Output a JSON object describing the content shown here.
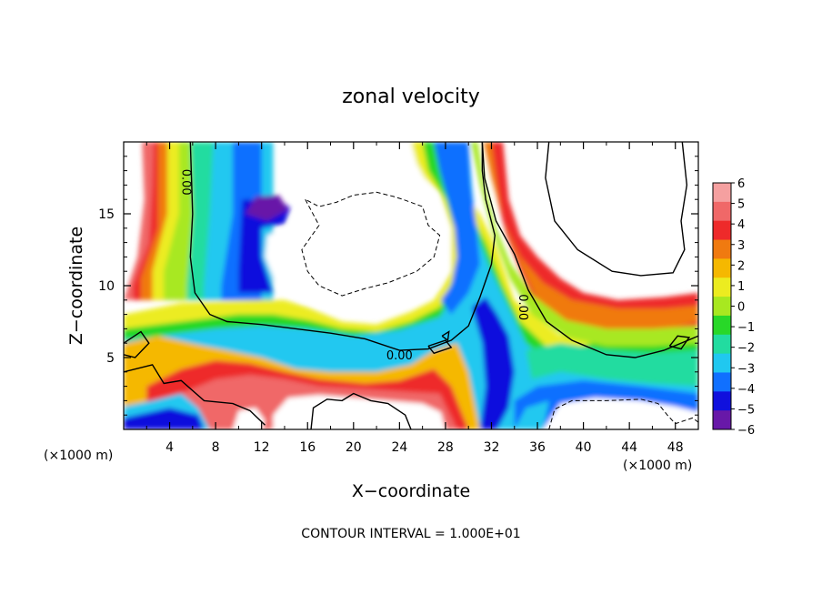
{
  "chart_data": {
    "type": "heatmap",
    "title": "zonal velocity",
    "xlabel": "X−coordinate",
    "ylabel": "Z−coordinate",
    "x_unit_label_left": "(×1000 m)",
    "x_unit_label_right": "(×1000 m)",
    "footer": "CONTOUR INTERVAL = 1.000E+01",
    "xlim": [
      0,
      50
    ],
    "ylim": [
      0,
      20
    ],
    "x_ticks": [
      {
        "v": 4,
        "label": "4"
      },
      {
        "v": 8,
        "label": "8"
      },
      {
        "v": 12,
        "label": "12"
      },
      {
        "v": 16,
        "label": "16"
      },
      {
        "v": 20,
        "label": "20"
      },
      {
        "v": 24,
        "label": "24"
      },
      {
        "v": 28,
        "label": "28"
      },
      {
        "v": 32,
        "label": "32"
      },
      {
        "v": 36,
        "label": "36"
      },
      {
        "v": 40,
        "label": "40"
      },
      {
        "v": 44,
        "label": "44"
      },
      {
        "v": 48,
        "label": "48"
      }
    ],
    "y_ticks": [
      {
        "v": 5,
        "label": "5"
      },
      {
        "v": 10,
        "label": "10"
      },
      {
        "v": 15,
        "label": "15"
      }
    ],
    "colorbar": {
      "range": [
        -6,
        6
      ],
      "labels": [
        "6",
        "5",
        "4",
        "3",
        "2",
        "1",
        "0",
        "−1",
        "−2",
        "−3",
        "−4",
        "−5",
        "−6"
      ],
      "colors": [
        "#f5a0a0",
        "#f06868",
        "#ee2a2a",
        "#f07a10",
        "#f5b800",
        "#ecec20",
        "#a8e820",
        "#28d828",
        "#22dca0",
        "#20c8f0",
        "#1070ff",
        "#1010dd",
        "#6818a8"
      ]
    },
    "contour_labels": [
      {
        "text": "0.00",
        "x": 5.5,
        "y": 17.2,
        "rotate": 90
      },
      {
        "text": "0.00",
        "x": 24.0,
        "y": 5.2,
        "rotate": 0
      },
      {
        "text": "0.00",
        "x": 34.8,
        "y": 8.5,
        "rotate": 90
      }
    ]
  }
}
